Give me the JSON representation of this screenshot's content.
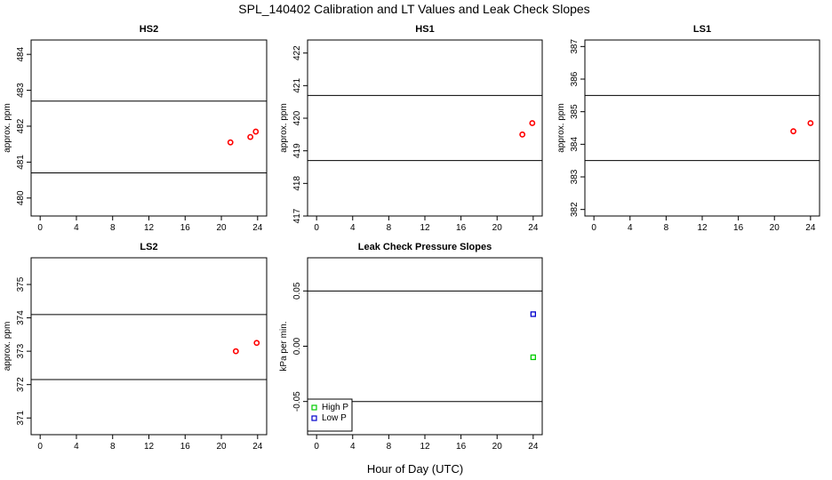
{
  "figure": {
    "title": "SPL_140402  Calibration and LT Values and Leak Check Slopes",
    "xlabel": "Hour of Day (UTC)"
  },
  "colors": {
    "cal_points": "#ff0000",
    "high_p": "#00cc00",
    "low_p": "#0000cc",
    "axis": "#000000"
  },
  "chart_data": [
    {
      "type": "scatter",
      "title": "HS2",
      "ylabel": "approx. ppm",
      "xlim": [
        -1,
        25
      ],
      "ylim": [
        479.5,
        484.4
      ],
      "xticks": [
        0,
        4,
        8,
        12,
        16,
        20,
        24
      ],
      "yticks": [
        480,
        481,
        482,
        483,
        484
      ],
      "hlines": [
        480.7,
        482.7
      ],
      "series": [
        {
          "color": "#ff0000",
          "marker": "circle",
          "points": [
            [
              21.0,
              481.55
            ],
            [
              23.2,
              481.7
            ],
            [
              23.8,
              481.85
            ]
          ]
        }
      ]
    },
    {
      "type": "scatter",
      "title": "HS1",
      "ylabel": "approx. ppm",
      "xlim": [
        -1,
        25
      ],
      "ylim": [
        417.0,
        422.4
      ],
      "xticks": [
        0,
        4,
        8,
        12,
        16,
        20,
        24
      ],
      "yticks": [
        417,
        418,
        419,
        420,
        421,
        422
      ],
      "hlines": [
        418.7,
        420.7
      ],
      "series": [
        {
          "color": "#ff0000",
          "marker": "circle",
          "points": [
            [
              22.8,
              419.5
            ],
            [
              23.9,
              419.85
            ]
          ]
        }
      ]
    },
    {
      "type": "scatter",
      "title": "LS1",
      "ylabel": "approx. ppm",
      "xlim": [
        -1,
        25
      ],
      "ylim": [
        381.8,
        387.2
      ],
      "xticks": [
        0,
        4,
        8,
        12,
        16,
        20,
        24
      ],
      "yticks": [
        382,
        383,
        384,
        385,
        386,
        387
      ],
      "hlines": [
        383.5,
        385.5
      ],
      "series": [
        {
          "color": "#ff0000",
          "marker": "circle",
          "points": [
            [
              22.1,
              384.4
            ],
            [
              24.0,
              384.65
            ]
          ]
        }
      ]
    },
    {
      "type": "scatter",
      "title": "LS2",
      "ylabel": "approx. ppm",
      "xlim": [
        -1,
        25
      ],
      "ylim": [
        370.5,
        375.8
      ],
      "xticks": [
        0,
        4,
        8,
        12,
        16,
        20,
        24
      ],
      "yticks": [
        371,
        372,
        373,
        374,
        375
      ],
      "hlines": [
        372.15,
        374.1
      ],
      "series": [
        {
          "color": "#ff0000",
          "marker": "circle",
          "points": [
            [
              21.6,
              373.0
            ],
            [
              23.9,
              373.25
            ]
          ]
        }
      ]
    },
    {
      "type": "scatter",
      "title": "Leak Check Pressure Slopes",
      "ylabel": "kPa per min.",
      "xlim": [
        -1,
        25
      ],
      "ylim": [
        -0.08,
        0.08
      ],
      "xticks": [
        0,
        4,
        8,
        12,
        16,
        20,
        24
      ],
      "yticks": [
        -0.05,
        0.0,
        0.05
      ],
      "ytick_labels": [
        "-0.05",
        "0.00",
        "0.05"
      ],
      "hlines": [
        -0.05,
        0.05
      ],
      "series": [
        {
          "name": "High P",
          "color": "#00cc00",
          "marker": "square",
          "points": [
            [
              24.0,
              -0.01
            ]
          ]
        },
        {
          "name": "Low P",
          "color": "#0000cc",
          "marker": "square",
          "points": [
            [
              24.0,
              0.029
            ]
          ]
        }
      ],
      "legend": "bottom-left"
    }
  ]
}
